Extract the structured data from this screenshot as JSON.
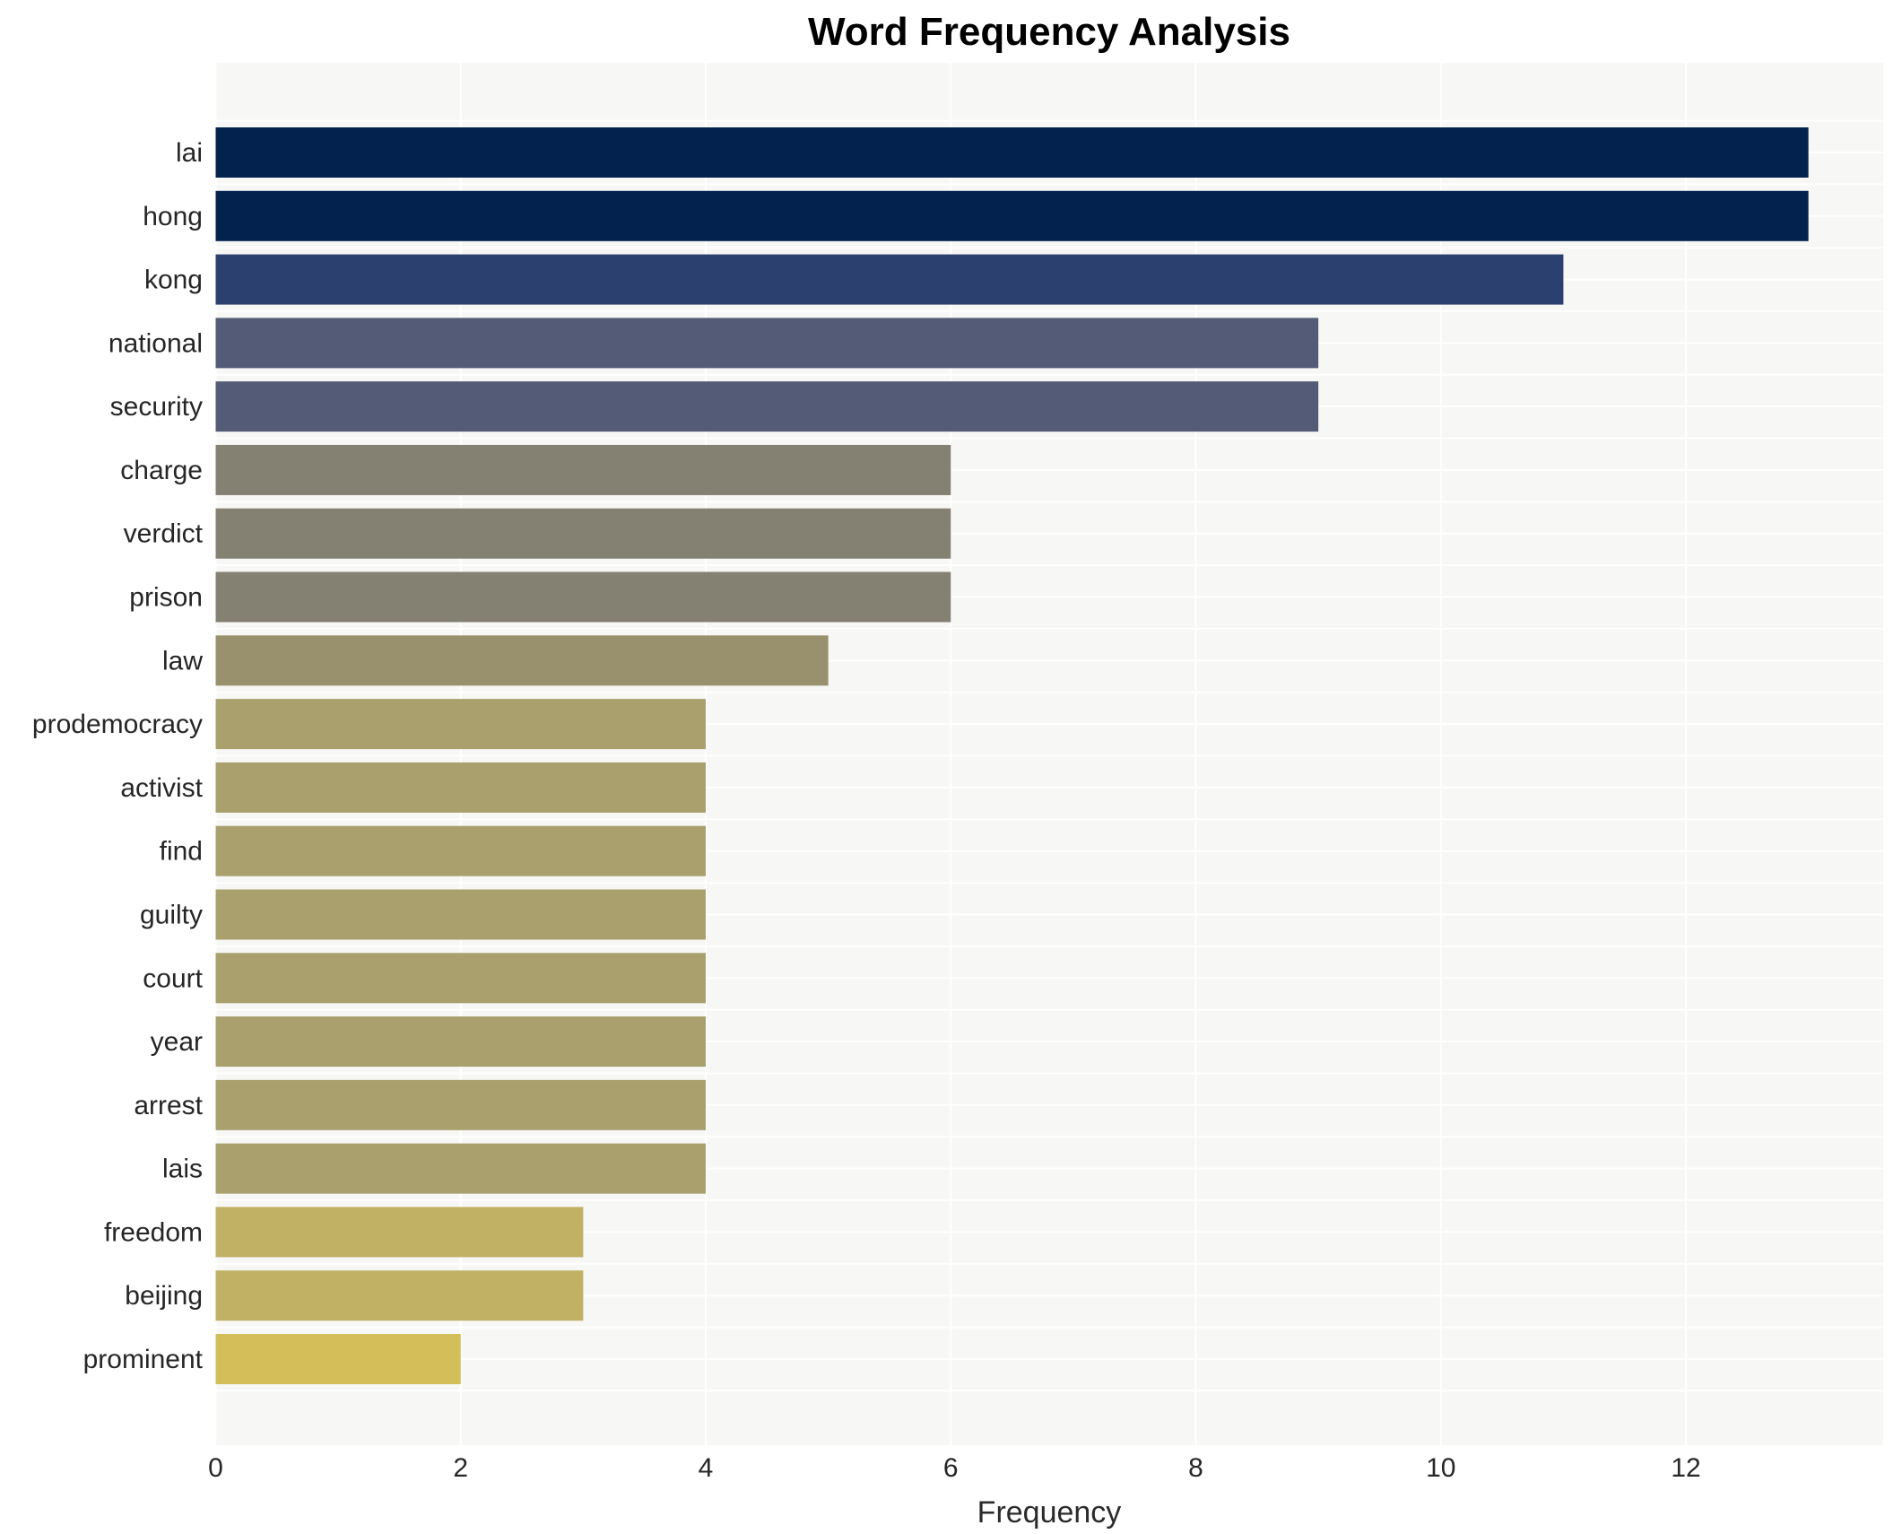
{
  "chart_data": {
    "type": "bar",
    "orientation": "horizontal",
    "title": "Word Frequency Analysis",
    "xlabel": "Frequency",
    "ylabel": "",
    "categories": [
      "lai",
      "hong",
      "kong",
      "national",
      "security",
      "charge",
      "verdict",
      "prison",
      "law",
      "prodemocracy",
      "activist",
      "find",
      "guilty",
      "court",
      "year",
      "arrest",
      "lais",
      "freedom",
      "beijing",
      "prominent"
    ],
    "values": [
      13,
      13,
      11,
      9,
      9,
      6,
      6,
      6,
      5,
      4,
      4,
      4,
      4,
      4,
      4,
      4,
      4,
      3,
      3,
      2
    ],
    "bar_colors": [
      "#03224e",
      "#03224e",
      "#2c4070",
      "#545b76",
      "#545b76",
      "#848172",
      "#848172",
      "#848172",
      "#99916e",
      "#a9a06e",
      "#a9a06e",
      "#a9a06e",
      "#a9a06e",
      "#a9a06e",
      "#a9a06e",
      "#a9a06e",
      "#a9a06e",
      "#c0b164",
      "#c0b164",
      "#d3be59"
    ],
    "xticks": [
      0,
      2,
      4,
      6,
      8,
      10,
      12
    ],
    "xlim": [
      0,
      13.61
    ],
    "grid": true,
    "legend": false,
    "plot_bg_color": "#f7f7f5",
    "grid_color": "#ffffff",
    "outer_bg_color": "#ffffff",
    "text_color": "#262626"
  }
}
